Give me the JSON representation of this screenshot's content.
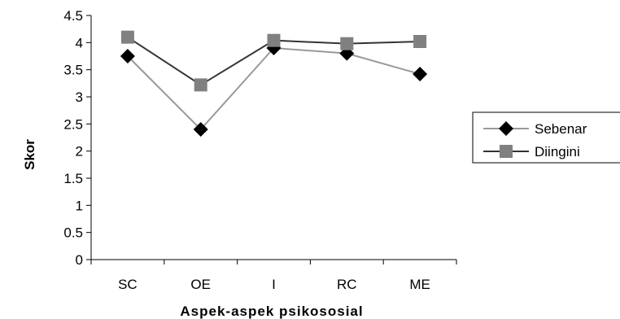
{
  "chart_data": {
    "type": "line",
    "categories": [
      "SC",
      "OE",
      "I",
      "RC",
      "ME"
    ],
    "xlabel": "Aspek-aspek psikososial",
    "ylabel": "Skor",
    "ylim": [
      0,
      4.5
    ],
    "yticks": [
      "0",
      "0.5",
      "1",
      "1.5",
      "2",
      "2.5",
      "3",
      "3.5",
      "4",
      "4.5"
    ],
    "grid": false,
    "legend_position": "right",
    "series": [
      {
        "name": "Sebenar",
        "values": [
          3.75,
          2.4,
          3.9,
          3.8,
          3.42
        ],
        "color": "#999999",
        "marker": "diamond",
        "marker_color": "#000000"
      },
      {
        "name": "Diingini",
        "values": [
          4.1,
          3.22,
          4.04,
          3.98,
          4.02
        ],
        "color": "#333333",
        "marker": "square",
        "marker_color": "#808080"
      }
    ]
  }
}
